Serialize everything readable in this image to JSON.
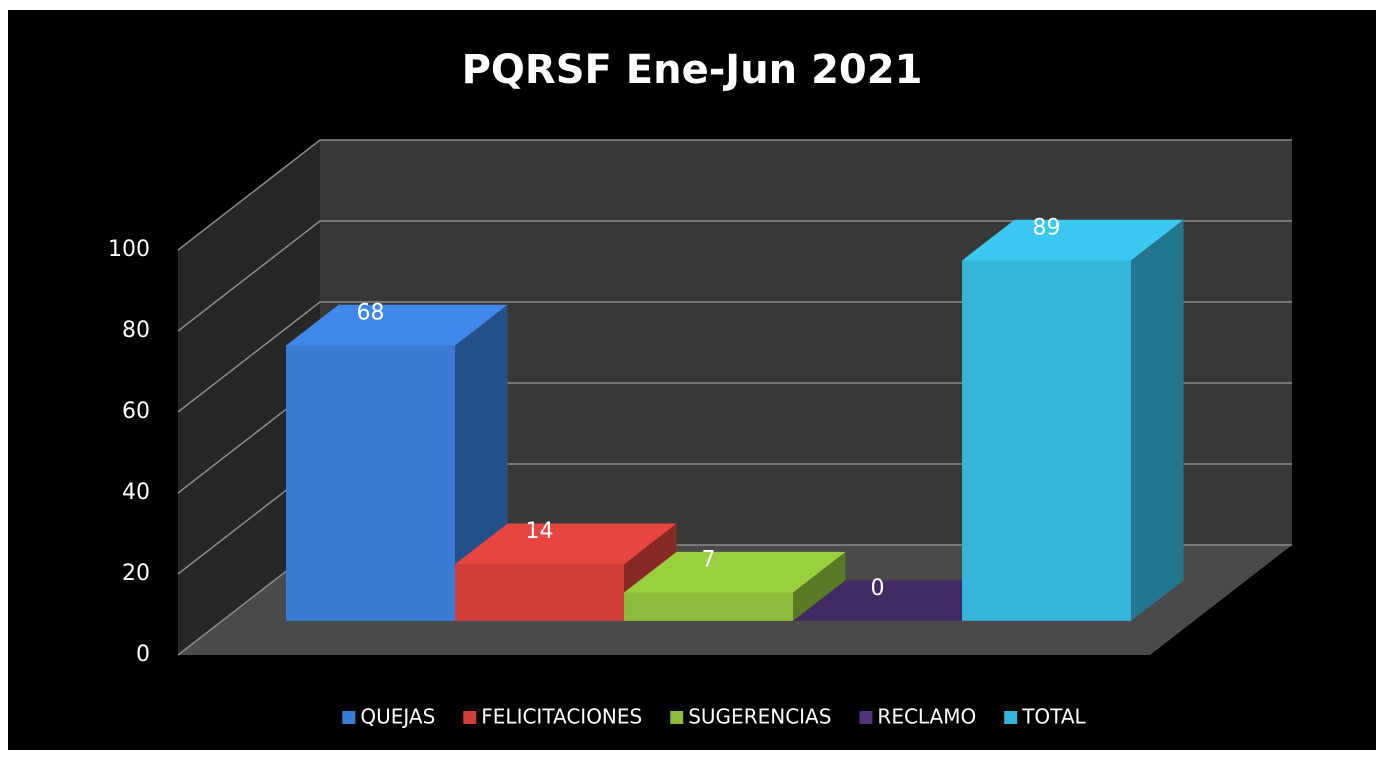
{
  "chart_data": {
    "type": "bar3d",
    "title": "PQRSF Ene-Jun 2021",
    "series": [
      {
        "name": "QUEJAS",
        "color": "#3a7bd5",
        "values": [
          68
        ]
      },
      {
        "name": "FELICITACIONES",
        "color": "#d23f3a",
        "values": [
          14
        ]
      },
      {
        "name": "SUGERENCIAS",
        "color": "#8cbc3a",
        "values": [
          7
        ]
      },
      {
        "name": "RECLAMO",
        "color": "#52347a",
        "values": [
          0
        ]
      },
      {
        "name": "TOTAL",
        "color": "#35b5da",
        "values": [
          89
        ]
      }
    ],
    "ylim": [
      0,
      100
    ],
    "yticks": [
      0,
      20,
      40,
      60,
      80,
      100
    ],
    "grid": true,
    "legend": "bottom"
  }
}
